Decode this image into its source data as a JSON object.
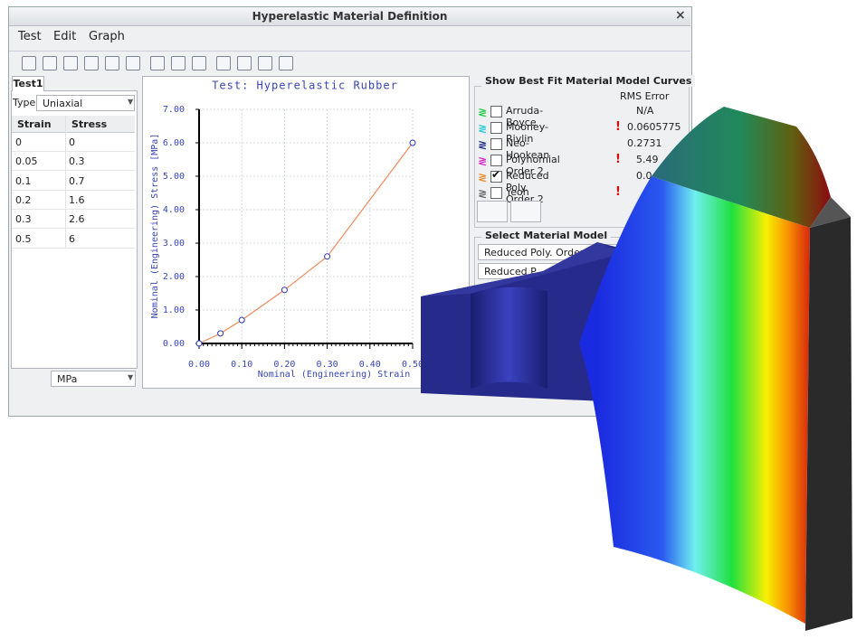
{
  "window": {
    "title": "Hyperelastic Material Definition",
    "close": "×"
  },
  "menu": [
    "Test",
    "Edit",
    "Graph"
  ],
  "left_panel": {
    "tab": "Test1",
    "type_label": "Type",
    "type_value": "Uniaxial",
    "table": {
      "headers": [
        "Strain",
        "Stress"
      ],
      "rows": [
        [
          "0",
          "0"
        ],
        [
          "0.05",
          "0.3"
        ],
        [
          "0.1",
          "0.7"
        ],
        [
          "0.2",
          "1.6"
        ],
        [
          "0.3",
          "2.6"
        ],
        [
          "0.5",
          "6"
        ]
      ]
    },
    "units": "MPa"
  },
  "chart_data": {
    "type": "scatter",
    "title": "Test: Hyperelastic Rubber",
    "x_label": "Nominal (Engineering) Strain",
    "y_label": "Nominal (Engineering) Stress [MPa]",
    "x": [
      0,
      0.05,
      0.1,
      0.2,
      0.3,
      0.5
    ],
    "values": [
      0,
      0.3,
      0.7,
      1.6,
      2.6,
      6
    ],
    "marker_color": "#2a36b0",
    "line_color": "#f08a5a",
    "xlim": [
      0,
      0.5
    ],
    "ylim": [
      0,
      7
    ],
    "xticks": [
      {
        "value": 0,
        "label": "0.00"
      },
      {
        "value": 0.1,
        "label": "0.10"
      },
      {
        "value": 0.2,
        "label": "0.20"
      },
      {
        "value": 0.3,
        "label": "0.30"
      },
      {
        "value": 0.4,
        "label": "0.40"
      },
      {
        "value": 0.5,
        "label": "0.50"
      }
    ],
    "yticks": [
      {
        "value": 0,
        "label": "0.00"
      },
      {
        "value": 1,
        "label": "1.00"
      },
      {
        "value": 2,
        "label": "2.00"
      },
      {
        "value": 3,
        "label": "3.00"
      },
      {
        "value": 4,
        "label": "4.00"
      },
      {
        "value": 5,
        "label": "5.00"
      },
      {
        "value": 6,
        "label": "6.00"
      },
      {
        "value": 7,
        "label": "7.00"
      }
    ],
    "grid": true
  },
  "right_panel": {
    "group_title": "Show Best Fit Material Model Curves",
    "error_header": "RMS Error",
    "models": [
      {
        "name": "Arruda-Boyce",
        "color": "#22cc44",
        "checked": false,
        "warning": false,
        "error": "N/A"
      },
      {
        "name": "Mooney-Rivlin",
        "color": "#22ccdd",
        "checked": false,
        "warning": true,
        "error": "0.0605775"
      },
      {
        "name": "Neo-Hookean",
        "color": "#1a2a8a",
        "checked": false,
        "warning": false,
        "error": "0.2731"
      },
      {
        "name": "Polynomial Order 2",
        "color": "#dd22cc",
        "checked": false,
        "warning": true,
        "error": "5.49"
      },
      {
        "name": "Reduced Poly. Order 2",
        "color": "#f08a2a",
        "checked": true,
        "warning": false,
        "error": "0.0"
      },
      {
        "name": "Yeoh",
        "color": "#666666",
        "checked": false,
        "warning": true
      }
    ],
    "select_title": "Select Material Model",
    "select_value": "Reduced Poly. Order 2",
    "second_value": "Reduced P"
  }
}
